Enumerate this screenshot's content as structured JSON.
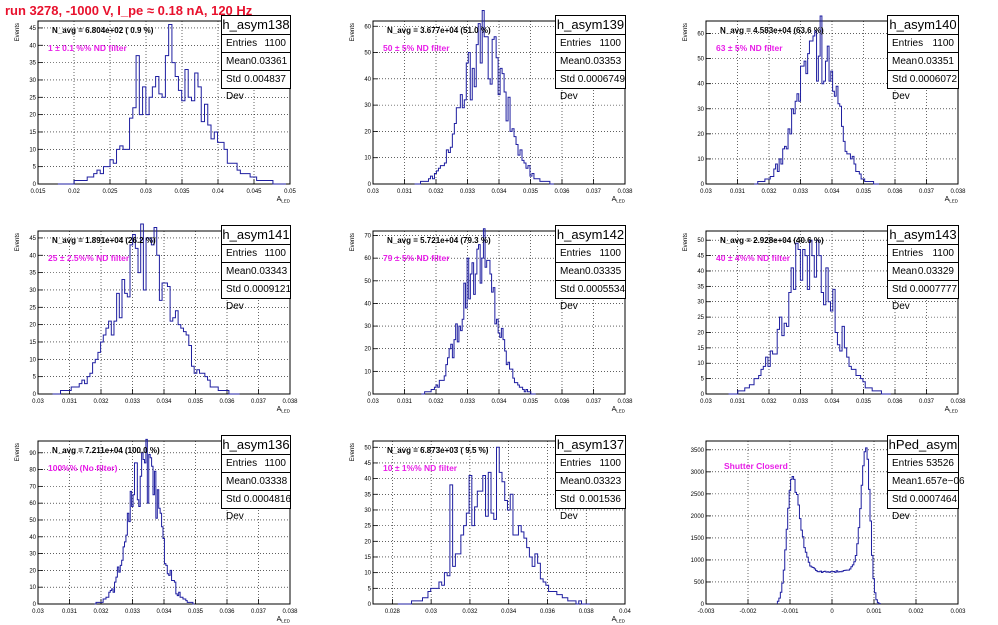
{
  "page_title": "run 3278, -1000 V, I_pe ≈ 0.18 nA, 120 Hz",
  "stat_labels": {
    "entries": "Entries",
    "mean": "Mean",
    "std": "Std Dev"
  },
  "colors": {
    "histogram": "#1e1ea0",
    "annotation_magenta": "#e81ee8",
    "title_red": "#e8112d"
  },
  "chart_data": [
    {
      "type": "bar",
      "name": "h_asym138",
      "ylabel": "Events",
      "xlabel": "A_LED",
      "xlim": [
        0.015,
        0.05
      ],
      "ylim": [
        0,
        47
      ],
      "grid": true,
      "x_ticks": [
        "0.015",
        "0.02",
        "0.025",
        "0.03",
        "0.035",
        "0.04",
        "0.045",
        "0.05"
      ],
      "y_ticks": [
        "0",
        "5",
        "10",
        "15",
        "20",
        "25",
        "30",
        "35",
        "40",
        "45"
      ],
      "navg": "N_avg = 6.804e+02 ( 0.9 %)",
      "filter": "1 ± 0.1 %% ND filter",
      "stats": {
        "entries": "1100",
        "mean": "0.03361",
        "std": "0.004837"
      },
      "profile": {
        "kind": "gauss",
        "mean": 0.0336,
        "std": 0.0048,
        "peak": 31
      },
      "spikes": [
        [
          0.03345,
          46
        ],
        [
          0.034,
          35
        ],
        [
          0.029,
          37
        ],
        [
          0.037,
          32
        ],
        [
          0.033,
          37
        ]
      ]
    },
    {
      "type": "bar",
      "name": "h_asym139",
      "ylabel": "Events",
      "xlabel": "A_LED",
      "xlim": [
        0.03,
        0.038
      ],
      "ylim": [
        0,
        62
      ],
      "grid": true,
      "x_ticks": [
        "0.03",
        "0.031",
        "0.032",
        "0.033",
        "0.034",
        "0.035",
        "0.036",
        "0.037",
        "0.038"
      ],
      "y_ticks": [
        "0",
        "10",
        "20",
        "30",
        "40",
        "50",
        "60"
      ],
      "navg": "N_avg = 3.677e+04 (51.0 %)",
      "filter": "50 ± 5% ND filter",
      "stats": {
        "entries": "1100",
        "mean": "0.03353",
        "std": "0.0006749"
      },
      "profile": {
        "kind": "gauss",
        "mean": 0.03353,
        "std": 0.00067,
        "peak": 52
      },
      "spikes": [
        [
          0.0336,
          56
        ],
        [
          0.0338,
          55
        ],
        [
          0.0333,
          53
        ]
      ]
    },
    {
      "type": "bar",
      "name": "h_asym140",
      "ylabel": "Events",
      "xlabel": "A_LED",
      "xlim": [
        0.03,
        0.038
      ],
      "ylim": [
        0,
        65
      ],
      "grid": true,
      "x_ticks": [
        "0.03",
        "0.031",
        "0.032",
        "0.033",
        "0.034",
        "0.035",
        "0.036",
        "0.037",
        "0.038"
      ],
      "y_ticks": [
        "0",
        "10",
        "20",
        "30",
        "40",
        "50",
        "60"
      ],
      "navg": "N_avg = 4.583e+04 (63.6 %)",
      "filter": "63 ± 5% ND filter",
      "stats": {
        "entries": "1100",
        "mean": "0.03351",
        "std": "0.0006072"
      },
      "profile": {
        "kind": "gauss",
        "mean": 0.03351,
        "std": 0.0006,
        "peak": 56
      },
      "spikes": [
        [
          0.0335,
          61
        ],
        [
          0.0339,
          55
        ],
        [
          0.0333,
          57
        ]
      ]
    },
    {
      "type": "bar",
      "name": "h_asym141",
      "ylabel": "Events",
      "xlabel": "A_LED",
      "xlim": [
        0.03,
        0.038
      ],
      "ylim": [
        0,
        47
      ],
      "grid": true,
      "x_ticks": [
        "0.03",
        "0.031",
        "0.032",
        "0.033",
        "0.034",
        "0.035",
        "0.036",
        "0.037",
        "0.038"
      ],
      "y_ticks": [
        "0",
        "5",
        "10",
        "15",
        "20",
        "25",
        "30",
        "35",
        "40",
        "45"
      ],
      "navg": "N_avg = 1.891e+04 (26.2 %)",
      "filter": "25 ± 2.5%% ND filter",
      "stats": {
        "entries": "1100",
        "mean": "0.03343",
        "std": "0.0009121"
      },
      "profile": {
        "kind": "gauss",
        "mean": 0.03343,
        "std": 0.0009,
        "peak": 40
      },
      "spikes": [
        [
          0.0335,
          45
        ],
        [
          0.033,
          43
        ],
        [
          0.0338,
          40
        ]
      ]
    },
    {
      "type": "bar",
      "name": "h_asym142",
      "ylabel": "Events",
      "xlabel": "A_LED",
      "xlim": [
        0.03,
        0.038
      ],
      "ylim": [
        0,
        72
      ],
      "grid": true,
      "x_ticks": [
        "0.03",
        "0.031",
        "0.032",
        "0.033",
        "0.034",
        "0.035",
        "0.036",
        "0.037",
        "0.038"
      ],
      "y_ticks": [
        "0",
        "10",
        "20",
        "30",
        "40",
        "50",
        "60",
        "70"
      ],
      "navg": "N_avg = 5.721e+04 (79.3 %)",
      "filter": "79 ± 5% ND filter",
      "stats": {
        "entries": "1100",
        "mean": "0.03335",
        "std": "0.0005534"
      },
      "profile": {
        "kind": "gauss",
        "mean": 0.03335,
        "std": 0.00055,
        "peak": 62
      },
      "spikes": [
        [
          0.0334,
          66
        ],
        [
          0.0333,
          64
        ]
      ]
    },
    {
      "type": "bar",
      "name": "h_asym143",
      "ylabel": "Events",
      "xlabel": "A_LED",
      "xlim": [
        0.03,
        0.038
      ],
      "ylim": [
        0,
        53
      ],
      "grid": true,
      "x_ticks": [
        "0.03",
        "0.031",
        "0.032",
        "0.033",
        "0.034",
        "0.035",
        "0.036",
        "0.037",
        "0.038"
      ],
      "y_ticks": [
        "0",
        "5",
        "10",
        "15",
        "20",
        "25",
        "30",
        "35",
        "40",
        "45",
        "50"
      ],
      "navg": "N_avg = 2.928e+04 (40.6 %)",
      "filter": "40 ± 4%% ND filter",
      "stats": {
        "entries": "1100",
        "mean": "0.03329",
        "std": "0.0007777"
      },
      "profile": {
        "kind": "gauss",
        "mean": 0.03329,
        "std": 0.00078,
        "peak": 44
      },
      "spikes": [
        [
          0.0333,
          50
        ],
        [
          0.0331,
          47
        ],
        [
          0.0336,
          45
        ]
      ]
    },
    {
      "type": "bar",
      "name": "h_asym136",
      "ylabel": "Events",
      "xlabel": "A_LED",
      "xlim": [
        0.03,
        0.038
      ],
      "ylim": [
        0,
        97
      ],
      "grid": true,
      "x_ticks": [
        "0.03",
        "0.031",
        "0.032",
        "0.033",
        "0.034",
        "0.035",
        "0.036",
        "0.037",
        "0.038"
      ],
      "y_ticks": [
        "0",
        "10",
        "20",
        "30",
        "40",
        "50",
        "60",
        "70",
        "80",
        "90"
      ],
      "navg": "N_avg = 7.211e+04 (100.0 %)",
      "filter": "100%% (No filter)",
      "stats": {
        "entries": "1100",
        "mean": "0.03338",
        "std": "0.0004816"
      },
      "profile": {
        "kind": "gauss",
        "mean": 0.03338,
        "std": 0.00048,
        "peak": 80
      },
      "spikes": [
        [
          0.0333,
          90
        ],
        [
          0.0334,
          84
        ]
      ]
    },
    {
      "type": "bar",
      "name": "h_asym137",
      "ylabel": "Events",
      "xlabel": "A_LED",
      "xlim": [
        0.027,
        0.04
      ],
      "ylim": [
        0,
        52
      ],
      "grid": true,
      "x_ticks": [
        "0.028",
        "0.03",
        "0.032",
        "0.034",
        "0.036",
        "0.038",
        "0.04"
      ],
      "y_ticks": [
        "0",
        "5",
        "10",
        "15",
        "20",
        "25",
        "30",
        "35",
        "40",
        "45",
        "50"
      ],
      "navg": "N_avg = 6.873e+03 ( 9.5 %)",
      "filter": "10 ± 1%% ND filter",
      "stats": {
        "entries": "1100",
        "mean": "0.03323",
        "std": "0.001536"
      },
      "profile": {
        "kind": "gauss",
        "mean": 0.03323,
        "std": 0.0015,
        "peak": 36
      },
      "spikes": [
        [
          0.0334,
          50
        ],
        [
          0.033,
          42
        ],
        [
          0.032,
          41
        ],
        [
          0.031,
          38
        ]
      ]
    },
    {
      "type": "bar",
      "name": "hPed_asym",
      "ylabel": "",
      "xlabel": "",
      "xlim": [
        -0.003,
        0.003
      ],
      "ylim": [
        0,
        3700
      ],
      "grid": true,
      "x_ticks": [
        "-0.003",
        "-0.002",
        "-0.001",
        "0",
        "0.001",
        "0.002",
        "0.003"
      ],
      "y_ticks": [
        "0",
        "500",
        "1000",
        "1500",
        "2000",
        "2500",
        "3000",
        "3500"
      ],
      "navg": "",
      "filter": "Shutter Closerd",
      "stats": {
        "entries": "53526",
        "mean": "1.657e−06",
        "std": "0.0007464"
      },
      "profile": {
        "kind": "double",
        "peaks": [
          [
            -0.00095,
            2850
          ],
          [
            0.00082,
            3550
          ]
        ],
        "valley": 850,
        "lo": -0.0013,
        "hi": 0.00115
      },
      "spikes": []
    }
  ]
}
